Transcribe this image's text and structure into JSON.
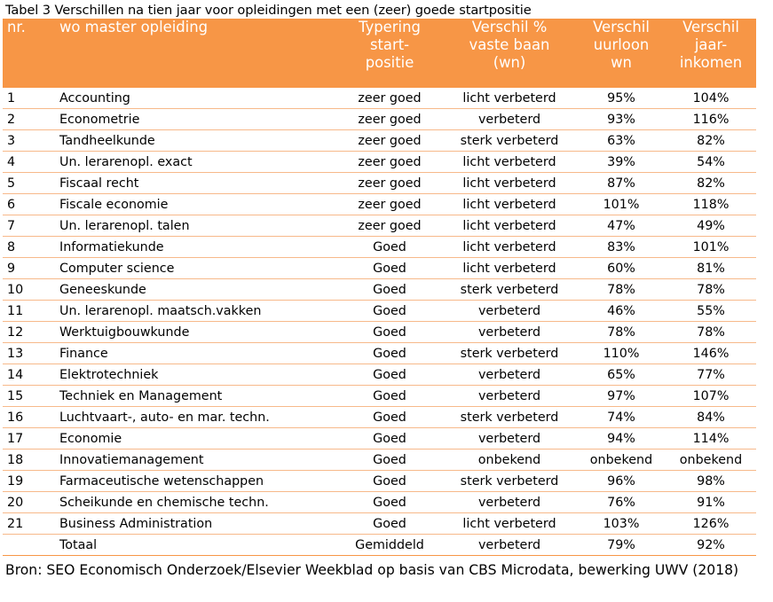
{
  "caption": "Tabel 3 Verschillen na tien jaar voor opleidingen met een (zeer) goede startpositie",
  "header": {
    "nr": "nr.",
    "opleiding": "wo master opleiding",
    "typering": [
      "Typering",
      "start-",
      "positie"
    ],
    "vaste_baan": [
      "Verschil %",
      "vaste baan",
      "(wn)"
    ],
    "uurloon": [
      "Verschil",
      "uurloon",
      "wn"
    ],
    "jaarinkomen": [
      "Verschil",
      "jaar-",
      "inkomen"
    ]
  },
  "rows": [
    {
      "nr": "1",
      "opleiding": "Accounting",
      "typering": "zeer goed",
      "vaste_baan": "licht verbeterd",
      "uurloon": "95%",
      "jaarinkomen": "104%"
    },
    {
      "nr": "2",
      "opleiding": "Econometrie",
      "typering": "zeer goed",
      "vaste_baan": "verbeterd",
      "uurloon": "93%",
      "jaarinkomen": "116%"
    },
    {
      "nr": "3",
      "opleiding": "Tandheelkunde",
      "typering": "zeer goed",
      "vaste_baan": "sterk verbeterd",
      "uurloon": "63%",
      "jaarinkomen": "82%"
    },
    {
      "nr": "4",
      "opleiding": "Un. lerarenopl. exact",
      "typering": "zeer goed",
      "vaste_baan": "licht verbeterd",
      "uurloon": "39%",
      "jaarinkomen": "54%"
    },
    {
      "nr": "5",
      "opleiding": "Fiscaal recht",
      "typering": "zeer goed",
      "vaste_baan": "licht verbeterd",
      "uurloon": "87%",
      "jaarinkomen": "82%"
    },
    {
      "nr": "6",
      "opleiding": "Fiscale economie",
      "typering": "zeer goed",
      "vaste_baan": "licht verbeterd",
      "uurloon": "101%",
      "jaarinkomen": "118%"
    },
    {
      "nr": "7",
      "opleiding": "Un. lerarenopl. talen",
      "typering": "zeer goed",
      "vaste_baan": "licht verbeterd",
      "uurloon": "47%",
      "jaarinkomen": "49%"
    },
    {
      "nr": "8",
      "opleiding": "Informatiekunde",
      "typering": "Goed",
      "vaste_baan": "licht verbeterd",
      "uurloon": "83%",
      "jaarinkomen": "101%"
    },
    {
      "nr": "9",
      "opleiding": "Computer science",
      "typering": "Goed",
      "vaste_baan": "licht verbeterd",
      "uurloon": "60%",
      "jaarinkomen": "81%"
    },
    {
      "nr": "10",
      "opleiding": "Geneeskunde",
      "typering": "Goed",
      "vaste_baan": "sterk verbeterd",
      "uurloon": "78%",
      "jaarinkomen": "78%"
    },
    {
      "nr": "11",
      "opleiding": "Un. lerarenopl. maatsch.vakken",
      "typering": "Goed",
      "vaste_baan": "verbeterd",
      "uurloon": "46%",
      "jaarinkomen": "55%"
    },
    {
      "nr": "12",
      "opleiding": "Werktuigbouwkunde",
      "typering": "Goed",
      "vaste_baan": "verbeterd",
      "uurloon": "78%",
      "jaarinkomen": "78%"
    },
    {
      "nr": "13",
      "opleiding": "Finance",
      "typering": "Goed",
      "vaste_baan": "sterk verbeterd",
      "uurloon": "110%",
      "jaarinkomen": "146%"
    },
    {
      "nr": "14",
      "opleiding": "Elektrotechniek",
      "typering": "Goed",
      "vaste_baan": "verbeterd",
      "uurloon": "65%",
      "jaarinkomen": "77%"
    },
    {
      "nr": "15",
      "opleiding": "Techniek en Management",
      "typering": "Goed",
      "vaste_baan": "verbeterd",
      "uurloon": "97%",
      "jaarinkomen": "107%"
    },
    {
      "nr": "16",
      "opleiding": "Luchtvaart-, auto- en mar. techn.",
      "typering": "Goed",
      "vaste_baan": "sterk verbeterd",
      "uurloon": "74%",
      "jaarinkomen": "84%"
    },
    {
      "nr": "17",
      "opleiding": "Economie",
      "typering": "Goed",
      "vaste_baan": "verbeterd",
      "uurloon": "94%",
      "jaarinkomen": "114%"
    },
    {
      "nr": "18",
      "opleiding": "Innovatiemanagement",
      "typering": "Goed",
      "vaste_baan": "onbekend",
      "uurloon": "onbekend",
      "jaarinkomen": "onbekend"
    },
    {
      "nr": "19",
      "opleiding": "Farmaceutische wetenschappen",
      "typering": "Goed",
      "vaste_baan": "sterk verbeterd",
      "uurloon": "96%",
      "jaarinkomen": "98%"
    },
    {
      "nr": "20",
      "opleiding": "Scheikunde en chemische techn.",
      "typering": "Goed",
      "vaste_baan": "verbeterd",
      "uurloon": "76%",
      "jaarinkomen": "91%"
    },
    {
      "nr": "21",
      "opleiding": "Business Administration",
      "typering": "Goed",
      "vaste_baan": "licht verbeterd",
      "uurloon": "103%",
      "jaarinkomen": "126%"
    }
  ],
  "total": {
    "nr": "",
    "opleiding": "Totaal",
    "typering": "Gemiddeld",
    "vaste_baan": "verbeterd",
    "uurloon": "79%",
    "jaarinkomen": "92%"
  },
  "source": "Bron: SEO Economisch Onderzoek/Elsevier Weekblad op basis van CBS Microdata, bewerking UWV (2018)",
  "colors": {
    "header_bg": "#f79646",
    "header_text": "#ffffff",
    "row_border": "#f7b98a"
  }
}
